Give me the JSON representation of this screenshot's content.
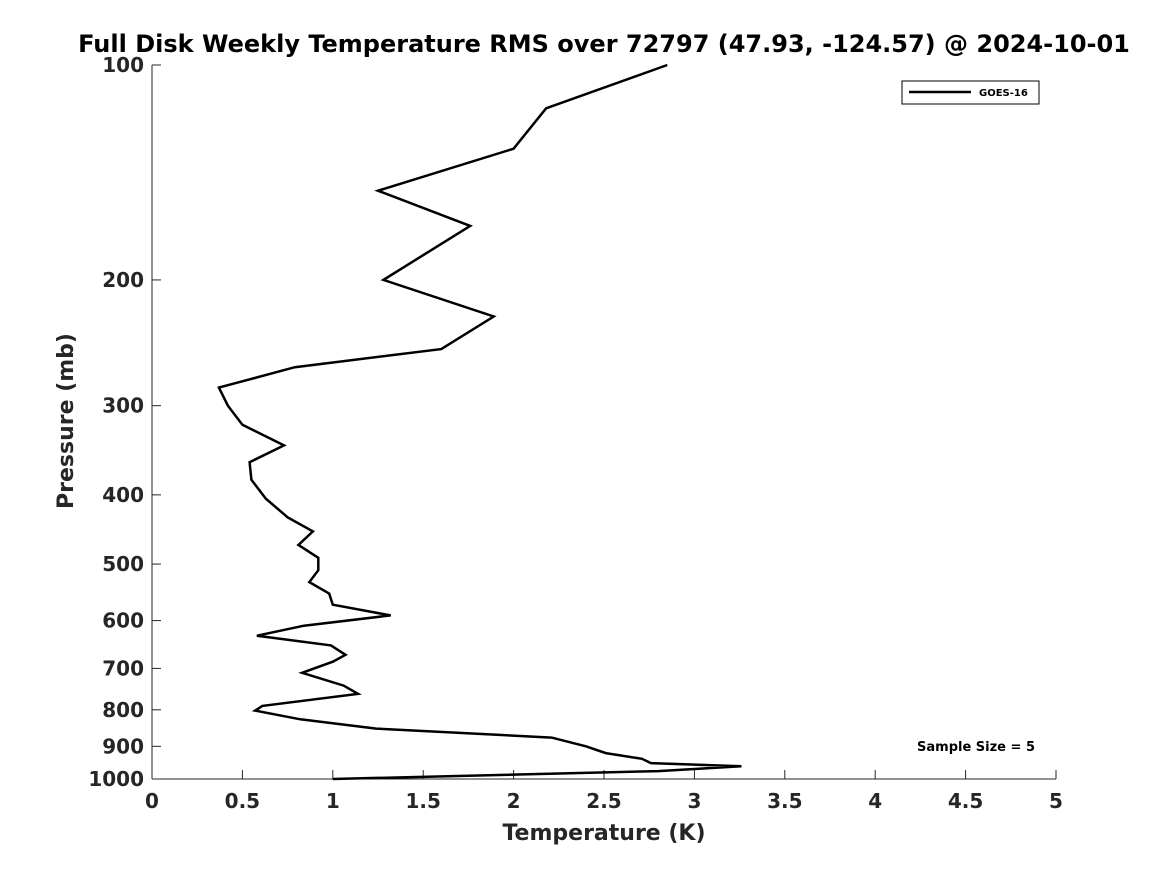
{
  "chart_data": {
    "type": "line",
    "title": "Full Disk Weekly Temperature RMS over 72797 (47.93, -124.57) @ 2024-10-01",
    "xlabel": "Temperature (K)",
    "ylabel": "Pressure (mb)",
    "xlim": [
      0,
      5
    ],
    "ylim": [
      100,
      1000
    ],
    "y_scale": "log",
    "y_reversed": true,
    "x_ticks": [
      "0",
      "0.5",
      "1",
      "1.5",
      "2",
      "2.5",
      "3",
      "3.5",
      "4",
      "4.5",
      "5"
    ],
    "y_ticks": [
      100,
      200,
      300,
      400,
      500,
      600,
      700,
      800,
      900,
      1000
    ],
    "grid": false,
    "legend": {
      "placement": "top-right",
      "entries": [
        "GOES-16"
      ]
    },
    "annotation": "Sample Size = 5",
    "series": [
      {
        "name": "GOES-16",
        "color": "#000000",
        "points": [
          [
            2.85,
            100
          ],
          [
            2.18,
            115
          ],
          [
            2.0,
            131
          ],
          [
            1.25,
            150
          ],
          [
            1.76,
            168
          ],
          [
            1.28,
            200
          ],
          [
            1.89,
            225
          ],
          [
            1.6,
            250
          ],
          [
            0.79,
            265
          ],
          [
            0.37,
            283
          ],
          [
            0.42,
            300
          ],
          [
            0.5,
            319
          ],
          [
            0.73,
            341
          ],
          [
            0.54,
            360
          ],
          [
            0.55,
            381
          ],
          [
            0.63,
            405
          ],
          [
            0.75,
            430
          ],
          [
            0.89,
            450
          ],
          [
            0.81,
            470
          ],
          [
            0.92,
            490
          ],
          [
            0.92,
            510
          ],
          [
            0.87,
            530
          ],
          [
            0.98,
            550
          ],
          [
            1.0,
            570
          ],
          [
            1.32,
            590
          ],
          [
            0.84,
            610
          ],
          [
            0.58,
            630
          ],
          [
            0.99,
            650
          ],
          [
            1.07,
            670
          ],
          [
            1.0,
            685
          ],
          [
            0.83,
            710
          ],
          [
            1.06,
            740
          ],
          [
            1.14,
            760
          ],
          [
            0.61,
            790
          ],
          [
            0.57,
            802
          ],
          [
            0.82,
            825
          ],
          [
            1.24,
            850
          ],
          [
            2.21,
            875
          ],
          [
            2.4,
            900
          ],
          [
            2.51,
            920
          ],
          [
            2.71,
            937
          ],
          [
            2.76,
            950
          ],
          [
            3.26,
            960
          ],
          [
            2.8,
            975
          ],
          [
            1.0,
            1000
          ]
        ]
      }
    ]
  }
}
